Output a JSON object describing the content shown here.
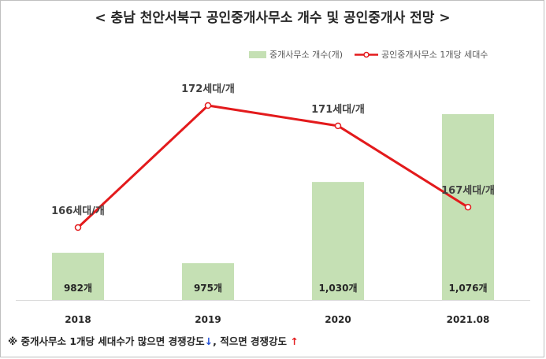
{
  "chart_data": {
    "type": "bar",
    "title": "< 충남 천안서북구 공인중개사무소 개수 및 공인중개사 전망 >",
    "categories": [
      "2018",
      "2019",
      "2020",
      "2021.08"
    ],
    "series": [
      {
        "name": "중개사무소 개수(개)",
        "type": "bar",
        "color": "#c5e0b4",
        "values": [
          982,
          975,
          1030,
          1076
        ],
        "labels": [
          "982개",
          "975개",
          "1,030개",
          "1,076개"
        ]
      },
      {
        "name": "공인중개사무소 1개당 세대수",
        "type": "line",
        "color": "#e31a1c",
        "values": [
          166,
          172,
          171,
          167
        ],
        "labels": [
          "166세대/개",
          "172세대/개",
          "171세대/개",
          "167세대/개"
        ]
      }
    ],
    "legend_position": "top-right",
    "grid": false,
    "footnote": {
      "part1": "※ 중개사무소 1개당 세대수가 많으면 경쟁강도",
      "arrow1": "↓",
      "part2": ", 적으면 경쟁강도 ",
      "arrow2": "↑",
      "arrow1_color": "#1f4fd8",
      "arrow2_color": "#e31a1c"
    }
  }
}
